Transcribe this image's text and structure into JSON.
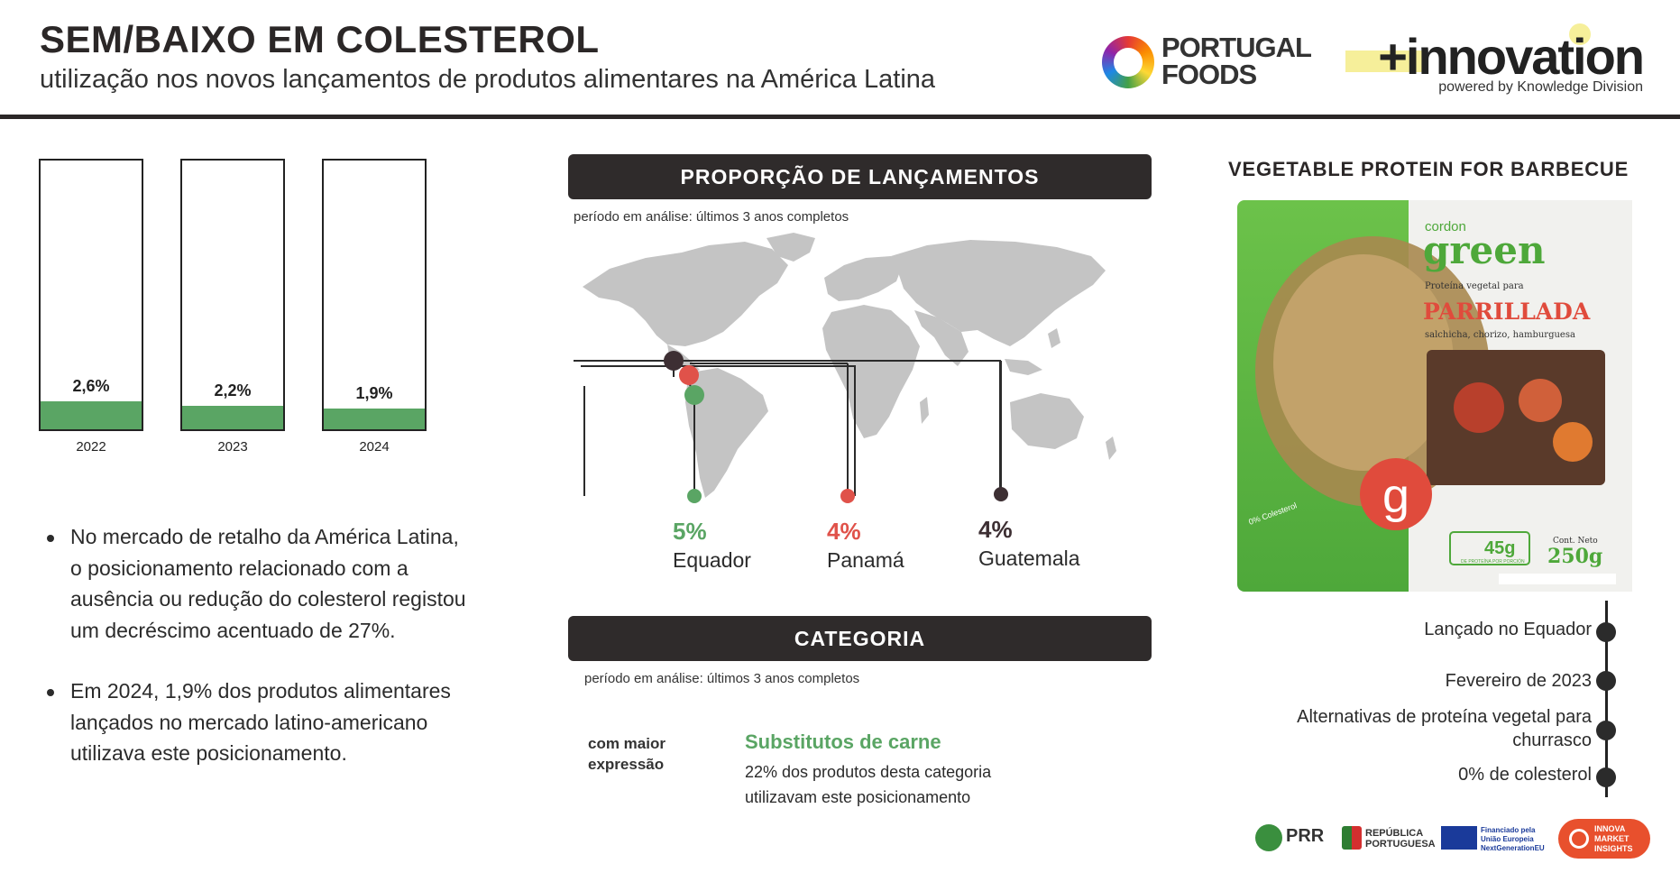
{
  "header": {
    "title": "SEM/BAIXO EM COLESTEROL",
    "subtitle": "utilização nos novos lançamentos de produtos alimentares na América Latina",
    "logo_portugal_foods": [
      "PORTUGAL",
      "FOODS"
    ],
    "logo_innovation": "+innovation",
    "logo_innovation_sub": "powered by Knowledge Division"
  },
  "chart_data": {
    "type": "bar",
    "categories": [
      "2022",
      "2023",
      "2024"
    ],
    "values": [
      2.6,
      2.2,
      1.9
    ],
    "data_labels": [
      "2,6%",
      "2,2%",
      "1,9%"
    ],
    "ylim": [
      0,
      25
    ],
    "title": "",
    "xlabel": "",
    "ylabel": "",
    "colors": {
      "fill": "#5aa564",
      "outline": "#222222"
    }
  },
  "bullets": [
    "No mercado de retalho da América Latina, o posicionamento relacionado com a ausência ou redução do colesterol registou um decréscimo acentuado de 27%.",
    "Em 2024, 1,9% dos produtos alimentares lançados no mercado latino-americano utilizava este posicionamento."
  ],
  "proportion": {
    "banner": "PROPORÇÃO DE LANÇAMENTOS",
    "period": "período em análise: últimos 3 anos completos",
    "countries": [
      {
        "pct": "5%",
        "name": "Equador",
        "color": "#5aa564"
      },
      {
        "pct": "4%",
        "name": "Panamá",
        "color": "#e0524a"
      },
      {
        "pct": "4%",
        "name": "Guatemala",
        "color": "#3d2f33"
      }
    ]
  },
  "category": {
    "banner": "CATEGORIA",
    "period": "período em análise: últimos 3 anos completos",
    "label": "com maior expressão",
    "name": "Substitutos de carne",
    "description": "22% dos produtos desta categoria utilizavam este posicionamento"
  },
  "product": {
    "title": "VEGETABLE PROTEIN FOR BARBECUE",
    "package": {
      "brand_top": "cordon",
      "brand": "green",
      "tagline": "Proteína vegetal para",
      "name": "PARRILLADA",
      "varieties": "salchicha, chorizo, hamburguesa",
      "badge_colesterol": "0% Colesterol",
      "protein": "45g",
      "protein_sub": "DE PROTEÍNA POR PORCIÓN",
      "net_label": "Cont. Neto",
      "net_weight": "250g",
      "logo_letter": "g"
    },
    "timeline": [
      "Lançado no Equador",
      "Fevereiro de 2023",
      "Alternativas de proteína vegetal para churrasco",
      "0% de colesterol"
    ]
  },
  "footer": {
    "prr": "PRR",
    "republica": [
      "REPÚBLICA",
      "PORTUGUESA"
    ],
    "eu": [
      "Financiado pela",
      "União Europeia",
      "NextGenerationEU"
    ],
    "innova": [
      "INNOVA",
      "MARKET",
      "INSIGHTS"
    ]
  }
}
